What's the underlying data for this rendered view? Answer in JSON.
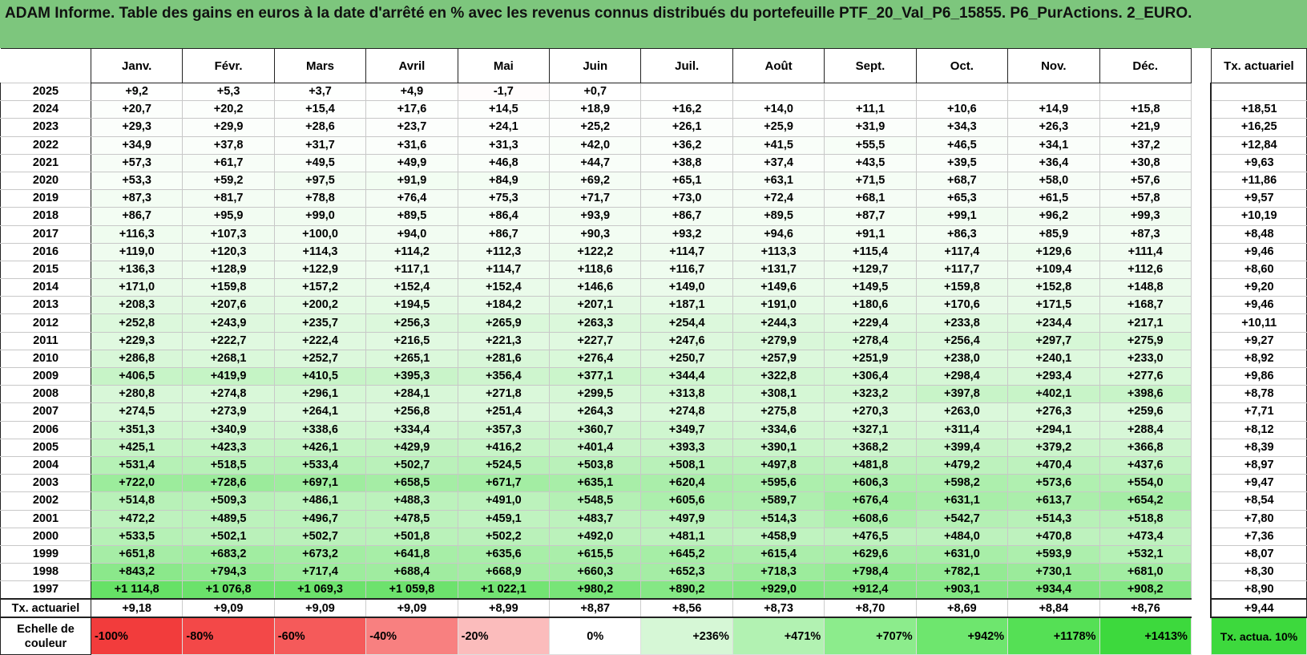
{
  "title": "ADAM Informe. Table des gains en euros à la date d'arrêté en % avec les revenus connus distribués du portefeuille PTF_20_Val_P6_15855. P6_PurActions. 2_EURO.",
  "months": [
    "Janv.",
    "Févr.",
    "Mars",
    "Avril",
    "Mai",
    "Juin",
    "Juil.",
    "Août",
    "Sept.",
    "Oct.",
    "Nov.",
    "Déc."
  ],
  "rate_header": "Tx. actuariel",
  "rows": [
    {
      "year": "2025",
      "values": [
        "+9,2",
        "+5,3",
        "+3,7",
        "+4,9",
        "-1,7",
        "+0,7",
        "",
        "",
        "",
        "",
        "",
        ""
      ],
      "rate": ""
    },
    {
      "year": "2024",
      "values": [
        "+20,7",
        "+20,2",
        "+15,4",
        "+17,6",
        "+14,5",
        "+18,9",
        "+16,2",
        "+14,0",
        "+11,1",
        "+10,6",
        "+14,9",
        "+15,8"
      ],
      "rate": "+18,51"
    },
    {
      "year": "2023",
      "values": [
        "+29,3",
        "+29,9",
        "+28,6",
        "+23,7",
        "+24,1",
        "+25,2",
        "+26,1",
        "+25,9",
        "+31,9",
        "+34,3",
        "+26,3",
        "+21,9"
      ],
      "rate": "+16,25"
    },
    {
      "year": "2022",
      "values": [
        "+34,9",
        "+37,8",
        "+31,7",
        "+31,6",
        "+31,3",
        "+42,0",
        "+36,2",
        "+41,5",
        "+55,5",
        "+46,5",
        "+34,1",
        "+37,2"
      ],
      "rate": "+12,84"
    },
    {
      "year": "2021",
      "values": [
        "+57,3",
        "+61,7",
        "+49,5",
        "+49,9",
        "+46,8",
        "+44,7",
        "+38,8",
        "+37,4",
        "+43,5",
        "+39,5",
        "+36,4",
        "+30,8"
      ],
      "rate": "+9,63"
    },
    {
      "year": "2020",
      "values": [
        "+53,3",
        "+59,2",
        "+97,5",
        "+91,9",
        "+84,9",
        "+69,2",
        "+65,1",
        "+63,1",
        "+71,5",
        "+68,7",
        "+58,0",
        "+57,6"
      ],
      "rate": "+11,86"
    },
    {
      "year": "2019",
      "values": [
        "+87,3",
        "+81,7",
        "+78,8",
        "+76,4",
        "+75,3",
        "+71,7",
        "+73,0",
        "+72,4",
        "+68,1",
        "+65,3",
        "+61,5",
        "+57,8"
      ],
      "rate": "+9,57"
    },
    {
      "year": "2018",
      "values": [
        "+86,7",
        "+95,9",
        "+99,0",
        "+89,5",
        "+86,4",
        "+93,9",
        "+86,7",
        "+89,5",
        "+87,7",
        "+99,1",
        "+96,2",
        "+99,3"
      ],
      "rate": "+10,19"
    },
    {
      "year": "2017",
      "values": [
        "+116,3",
        "+107,3",
        "+100,0",
        "+94,0",
        "+86,7",
        "+90,3",
        "+93,2",
        "+94,6",
        "+91,1",
        "+86,3",
        "+85,9",
        "+87,3"
      ],
      "rate": "+8,48"
    },
    {
      "year": "2016",
      "values": [
        "+119,0",
        "+120,3",
        "+114,3",
        "+114,2",
        "+112,3",
        "+122,2",
        "+114,7",
        "+113,3",
        "+115,4",
        "+117,4",
        "+129,6",
        "+111,4"
      ],
      "rate": "+9,46"
    },
    {
      "year": "2015",
      "values": [
        "+136,3",
        "+128,9",
        "+122,9",
        "+117,1",
        "+114,7",
        "+118,6",
        "+116,7",
        "+131,7",
        "+129,7",
        "+117,7",
        "+109,4",
        "+112,6"
      ],
      "rate": "+8,60"
    },
    {
      "year": "2014",
      "values": [
        "+171,0",
        "+159,8",
        "+157,2",
        "+152,4",
        "+152,4",
        "+146,6",
        "+149,0",
        "+149,6",
        "+149,5",
        "+159,8",
        "+152,8",
        "+148,8"
      ],
      "rate": "+9,20"
    },
    {
      "year": "2013",
      "values": [
        "+208,3",
        "+207,6",
        "+200,2",
        "+194,5",
        "+184,2",
        "+207,1",
        "+187,1",
        "+191,0",
        "+180,6",
        "+170,6",
        "+171,5",
        "+168,7"
      ],
      "rate": "+9,46"
    },
    {
      "year": "2012",
      "values": [
        "+252,8",
        "+243,9",
        "+235,7",
        "+256,3",
        "+265,9",
        "+263,3",
        "+254,4",
        "+244,3",
        "+229,4",
        "+233,8",
        "+234,4",
        "+217,1"
      ],
      "rate": "+10,11"
    },
    {
      "year": "2011",
      "values": [
        "+229,3",
        "+222,7",
        "+222,4",
        "+216,5",
        "+221,3",
        "+227,7",
        "+247,6",
        "+279,9",
        "+278,4",
        "+256,4",
        "+297,7",
        "+275,9"
      ],
      "rate": "+9,27"
    },
    {
      "year": "2010",
      "values": [
        "+286,8",
        "+268,1",
        "+252,7",
        "+265,1",
        "+281,6",
        "+276,4",
        "+250,7",
        "+257,9",
        "+251,9",
        "+238,0",
        "+240,1",
        "+233,0"
      ],
      "rate": "+8,92"
    },
    {
      "year": "2009",
      "values": [
        "+406,5",
        "+419,9",
        "+410,5",
        "+395,3",
        "+356,4",
        "+377,1",
        "+344,4",
        "+322,8",
        "+306,4",
        "+298,4",
        "+293,4",
        "+277,6"
      ],
      "rate": "+9,86"
    },
    {
      "year": "2008",
      "values": [
        "+280,8",
        "+274,8",
        "+296,1",
        "+284,1",
        "+271,8",
        "+299,5",
        "+313,8",
        "+308,1",
        "+323,2",
        "+397,8",
        "+402,1",
        "+398,6"
      ],
      "rate": "+8,78"
    },
    {
      "year": "2007",
      "values": [
        "+274,5",
        "+273,9",
        "+264,1",
        "+256,8",
        "+251,4",
        "+264,3",
        "+274,8",
        "+275,8",
        "+270,3",
        "+263,0",
        "+276,3",
        "+259,6"
      ],
      "rate": "+7,71"
    },
    {
      "year": "2006",
      "values": [
        "+351,3",
        "+340,9",
        "+338,6",
        "+334,4",
        "+357,3",
        "+360,7",
        "+349,7",
        "+334,6",
        "+327,1",
        "+311,4",
        "+294,1",
        "+288,4"
      ],
      "rate": "+8,12"
    },
    {
      "year": "2005",
      "values": [
        "+425,1",
        "+423,3",
        "+426,1",
        "+429,9",
        "+416,2",
        "+401,4",
        "+393,3",
        "+390,1",
        "+368,2",
        "+399,4",
        "+379,2",
        "+366,8"
      ],
      "rate": "+8,39"
    },
    {
      "year": "2004",
      "values": [
        "+531,4",
        "+518,5",
        "+533,4",
        "+502,7",
        "+524,5",
        "+503,8",
        "+508,1",
        "+497,8",
        "+481,8",
        "+479,2",
        "+470,4",
        "+437,6"
      ],
      "rate": "+8,97"
    },
    {
      "year": "2003",
      "values": [
        "+722,0",
        "+728,6",
        "+697,1",
        "+658,5",
        "+671,7",
        "+635,1",
        "+620,4",
        "+595,6",
        "+606,3",
        "+598,2",
        "+573,6",
        "+554,0"
      ],
      "rate": "+9,47"
    },
    {
      "year": "2002",
      "values": [
        "+514,8",
        "+509,3",
        "+486,1",
        "+488,3",
        "+491,0",
        "+548,5",
        "+605,6",
        "+589,7",
        "+676,4",
        "+631,1",
        "+613,7",
        "+654,2"
      ],
      "rate": "+8,54"
    },
    {
      "year": "2001",
      "values": [
        "+472,2",
        "+489,5",
        "+496,7",
        "+478,5",
        "+459,1",
        "+483,7",
        "+497,9",
        "+514,3",
        "+608,6",
        "+542,7",
        "+514,3",
        "+518,8"
      ],
      "rate": "+7,80"
    },
    {
      "year": "2000",
      "values": [
        "+533,5",
        "+502,1",
        "+502,7",
        "+501,8",
        "+502,2",
        "+492,0",
        "+481,1",
        "+458,9",
        "+476,5",
        "+484,0",
        "+470,8",
        "+473,4"
      ],
      "rate": "+7,36"
    },
    {
      "year": "1999",
      "values": [
        "+651,8",
        "+683,2",
        "+673,2",
        "+641,8",
        "+635,6",
        "+615,5",
        "+645,2",
        "+615,4",
        "+629,6",
        "+631,0",
        "+593,9",
        "+532,1"
      ],
      "rate": "+8,07"
    },
    {
      "year": "1998",
      "values": [
        "+843,2",
        "+794,3",
        "+717,4",
        "+688,4",
        "+668,9",
        "+660,3",
        "+652,3",
        "+718,3",
        "+798,4",
        "+782,1",
        "+730,1",
        "+681,0"
      ],
      "rate": "+8,30"
    },
    {
      "year": "1997",
      "values": [
        "+1 114,8",
        "+1 076,8",
        "+1 069,3",
        "+1 059,8",
        "+1 022,1",
        "+980,2",
        "+890,2",
        "+929,0",
        "+912,4",
        "+903,1",
        "+934,4",
        "+908,2"
      ],
      "rate": "+8,90"
    }
  ],
  "average_row": {
    "label": "Tx. actuariel",
    "values": [
      "+9,18",
      "+9,09",
      "+9,09",
      "+9,09",
      "+8,99",
      "+8,87",
      "+8,56",
      "+8,73",
      "+8,70",
      "+8,69",
      "+8,84",
      "+8,76"
    ],
    "rate": "+9,44"
  },
  "scale": {
    "label": "Echelle de couleur",
    "steps": [
      {
        "text": "-100%",
        "color": "#f23c3c"
      },
      {
        "text": "-80%",
        "color": "#f34848"
      },
      {
        "text": "-60%",
        "color": "#f55a5a"
      },
      {
        "text": "-40%",
        "color": "#f88080"
      },
      {
        "text": "-20%",
        "color": "#fbbcbc"
      },
      {
        "text": "0%",
        "color": "#ffffff"
      },
      {
        "text": "+236%",
        "color": "#d6f7d6"
      },
      {
        "text": "+471%",
        "color": "#b2f2b2"
      },
      {
        "text": "+707%",
        "color": "#8cec8c"
      },
      {
        "text": "+942%",
        "color": "#6ee66e"
      },
      {
        "text": "+1178%",
        "color": "#55e055"
      },
      {
        "text": "+1413%",
        "color": "#3dd93d"
      }
    ],
    "rate_text": "Tx. actua. 10%",
    "rate_color": "#3dd93d"
  }
}
